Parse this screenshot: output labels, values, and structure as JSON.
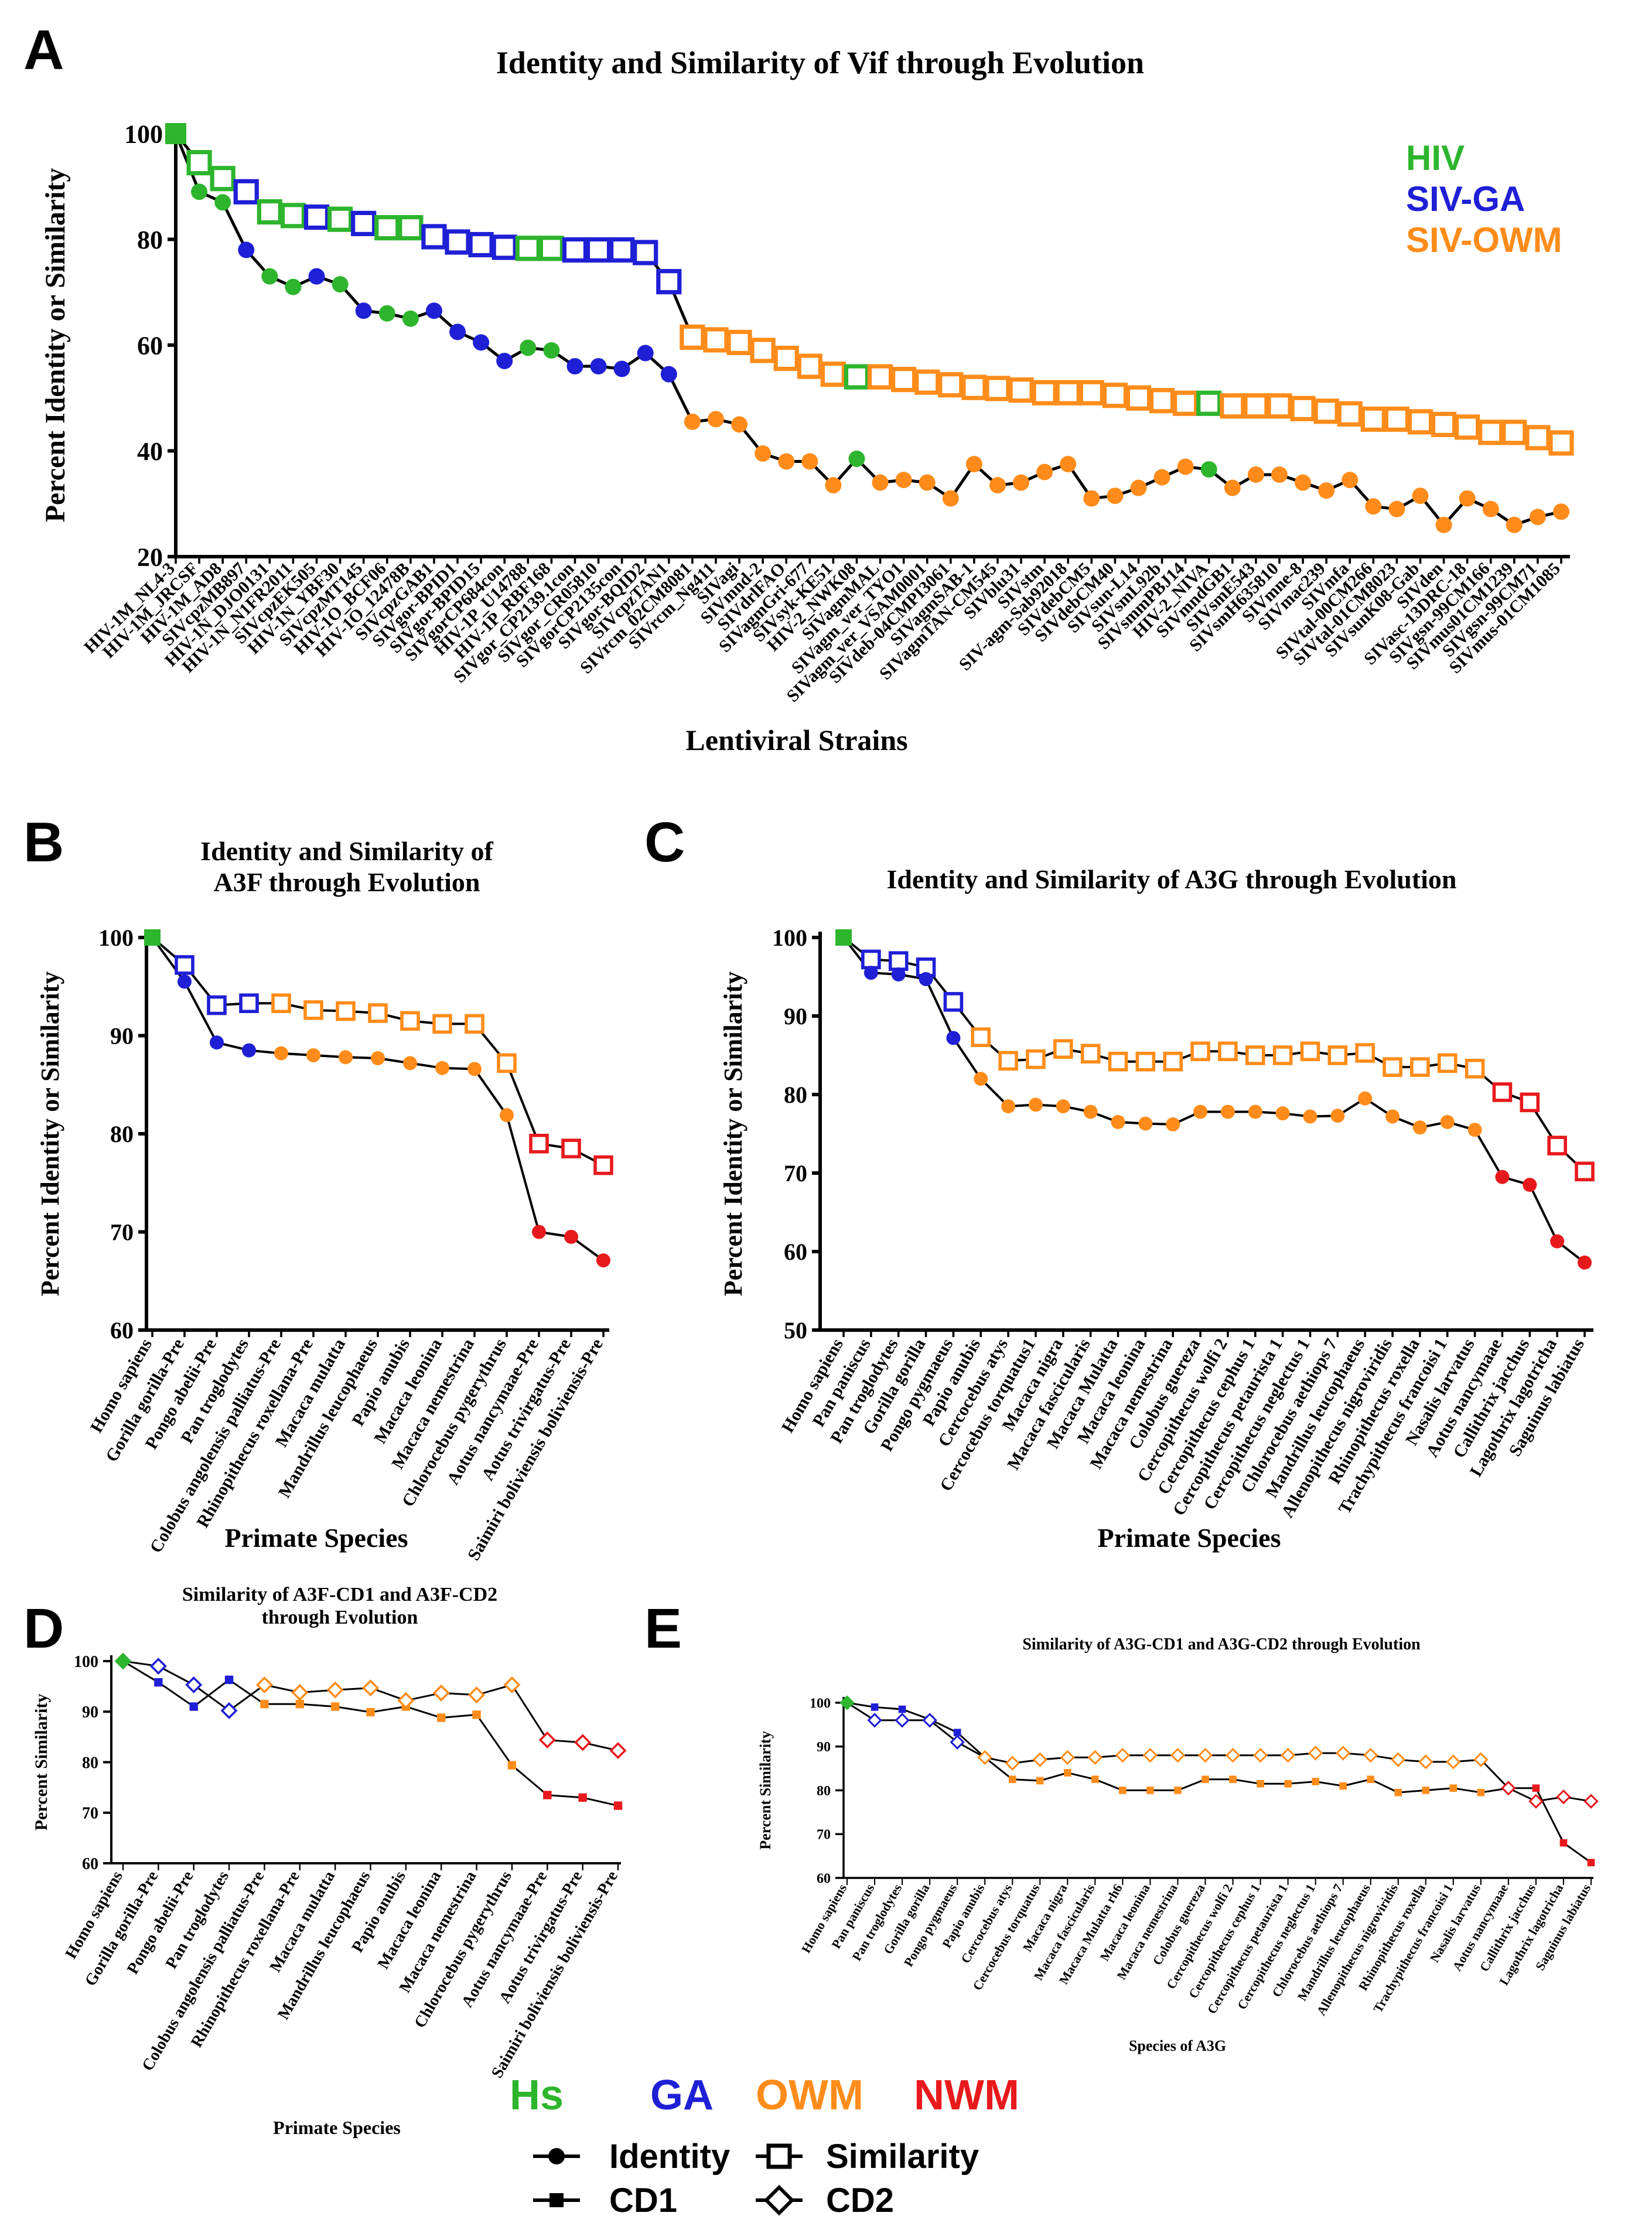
{
  "colors": {
    "Hs": "#2db52d",
    "GA": "#1f1fd6",
    "OWM": "#ff8c1a",
    "NWM": "#e8191d",
    "line": "#000000"
  },
  "legend": {
    "group_labels": [
      "Hs",
      "GA",
      "OWM",
      "NWM"
    ],
    "identity_label": "Identity",
    "similarity_label": "Similarity",
    "cd1_label": "CD1",
    "cd2_label": "CD2"
  },
  "chart_data": [
    {
      "panel": "A",
      "type": "line",
      "title": "Identity and Similarity of Vif through Evolution",
      "xlabel": "Lentiviral Strains",
      "ylabel": "Percent Identity or Similarity",
      "ylim": [
        20,
        100
      ],
      "yticks": [
        20,
        40,
        60,
        80,
        100
      ],
      "legend_entries": [
        "HIV",
        "SIV-GA",
        "SIV-OWM"
      ],
      "legend_colors": [
        "Hs",
        "GA",
        "OWM"
      ],
      "categories": [
        "HIV-1M_NL4-3",
        "HIV-1M_JRCSF",
        "HIV-1M_AD8",
        "SIVcpzMB897",
        "HIV-1N_DJO0131",
        "HIV-1N_N1FR2011",
        "SIVcpzEK505",
        "HIV-1N_YBF30",
        "SIVcpzMT145",
        "HIV-1O_BCF06",
        "HIV-1O_12478B",
        "SIVcpzGAB1",
        "SIVgor-BPID1",
        "SIVgor-BPID15",
        "SIVgorCP684con",
        "HIV-1P_U14788",
        "HIV-1P_RBF168",
        "SIVgor_CP2139.1con",
        "SIVgor_CR05810",
        "SIVgorCP2135con",
        "SIVgor-BQID2",
        "SIVcpzTAN1",
        "SIVrcm_02CM8081",
        "SIVrcm_Ng411",
        "SIVagi",
        "SIVmnd-2",
        "SIVdrlFAO",
        "SIVagmGri-677",
        "SIVsyk-KE51",
        "HIV-2_NWK08",
        "SIVagmMAL",
        "SIVagm_ver_TYO1",
        "SIVagm_ver_VSAM0001",
        "SIVdeb-04CMPI3061",
        "SIVagmSAB-1",
        "SIVagmTAN-CM545",
        "SIVblu31",
        "SIVstm",
        "SIV-agm-Sab92018",
        "SIVdebCM5",
        "SIVdebCM40",
        "SIVsun-L14",
        "SIVsmL92b",
        "SIVsmmPBJ14",
        "HIV-2_NIVA",
        "SIVmndGB1",
        "SIVsmE543",
        "SIVsmH635810",
        "SIVmne-8",
        "SIVmac239",
        "SIVmfa",
        "SIVtal-00CM266",
        "SIVtal-01CM8023",
        "SIVsunK08-Gab",
        "SIVden",
        "SIVasc-13DRC-18",
        "SIVgsn-99CM166",
        "SIVmus01CM1239",
        "SIVgsn-99CM71",
        "SIVmus-01CM1085"
      ],
      "similarity": [
        100,
        94.5,
        91.5,
        89,
        85.2,
        84.5,
        84.2,
        83.8,
        83,
        82.2,
        82.2,
        80.5,
        79.5,
        79,
        78.5,
        78.3,
        78.3,
        78,
        78,
        78,
        77.5,
        72,
        61.5,
        61,
        60.5,
        59,
        57.5,
        56,
        54.5,
        54,
        54,
        53.5,
        53,
        52.5,
        52,
        51.8,
        51.5,
        51,
        51,
        51,
        50.5,
        50,
        49.5,
        49,
        49,
        48.5,
        48.5,
        48.5,
        48,
        47.5,
        47,
        46,
        46,
        45.5,
        45,
        44.5,
        43.5,
        43.5,
        42.5,
        41.5
      ],
      "identity": [
        100,
        89,
        87,
        78,
        73,
        71,
        73,
        71.5,
        66.5,
        66,
        65,
        66.5,
        62.5,
        60.5,
        57,
        59.5,
        59,
        56,
        56,
        55.5,
        58.5,
        54.5,
        45.5,
        46,
        45,
        39.5,
        38,
        38,
        33.5,
        38.5,
        34,
        34.5,
        34,
        31,
        37.5,
        33.5,
        34,
        36,
        37.5,
        31,
        31.5,
        33,
        35,
        37,
        36.5,
        33,
        35.5,
        35.5,
        34,
        32.5,
        34.5,
        29.5,
        29,
        31.5,
        26,
        31,
        29,
        26,
        27.5,
        28.5
      ],
      "group": [
        "Hs",
        "Hs",
        "Hs",
        "GA",
        "Hs",
        "Hs",
        "GA",
        "Hs",
        "GA",
        "Hs",
        "Hs",
        "GA",
        "GA",
        "GA",
        "GA",
        "Hs",
        "Hs",
        "GA",
        "GA",
        "GA",
        "GA",
        "GA",
        "OWM",
        "OWM",
        "OWM",
        "OWM",
        "OWM",
        "OWM",
        "OWM",
        "Hs",
        "OWM",
        "OWM",
        "OWM",
        "OWM",
        "OWM",
        "OWM",
        "OWM",
        "OWM",
        "OWM",
        "OWM",
        "OWM",
        "OWM",
        "OWM",
        "OWM",
        "Hs",
        "OWM",
        "OWM",
        "OWM",
        "OWM",
        "OWM",
        "OWM",
        "OWM",
        "OWM",
        "OWM",
        "OWM",
        "OWM",
        "OWM",
        "OWM",
        "OWM",
        "OWM"
      ]
    },
    {
      "panel": "B",
      "type": "line",
      "title": [
        "Identity and Similarity of",
        "A3F through Evolution"
      ],
      "xlabel": "Primate Species",
      "ylabel": "Percent Identity or Similarity",
      "ylim": [
        60,
        100
      ],
      "yticks": [
        60,
        70,
        80,
        90,
        100
      ],
      "categories": [
        "Homo sapiens",
        "Gorilla gorilla-Pre",
        "Pongo abelii-Pre",
        "Pan troglodytes",
        "Colobus angolensis palliatus-Pre",
        "Rhinopithecus roxellana-Pre",
        "Macaca mulatta",
        "Mandrillus leucophaeus",
        "Papio anubis",
        "Macaca leonina",
        "Macaca nemestrina",
        "Chlorocebus pygerythrus",
        "Aotus nancymaae-Pre",
        "Aotus trivirgatus-Pre",
        "Saimiri boliviensis boliviensis-Pre"
      ],
      "similarity": [
        100,
        97.2,
        93.1,
        93.3,
        93.3,
        92.6,
        92.5,
        92.3,
        91.5,
        91.2,
        91.2,
        87.2,
        79,
        78.5,
        76.8
      ],
      "identity": [
        100,
        95.5,
        89.3,
        88.5,
        88.2,
        88,
        87.8,
        87.7,
        87.2,
        86.7,
        86.6,
        81.9,
        70,
        69.5,
        67.1
      ],
      "group": [
        "Hs",
        "GA",
        "GA",
        "GA",
        "OWM",
        "OWM",
        "OWM",
        "OWM",
        "OWM",
        "OWM",
        "OWM",
        "OWM",
        "NWM",
        "NWM",
        "NWM"
      ]
    },
    {
      "panel": "C",
      "type": "line",
      "title": "Identity and Similarity of A3G through Evolution",
      "xlabel": "Primate Species",
      "ylabel": "Percent Identity or Similarity",
      "ylim": [
        50,
        100
      ],
      "yticks": [
        50,
        60,
        70,
        80,
        90,
        100
      ],
      "categories": [
        "Homo sapiens",
        "Pan paniscus",
        "Pan troglodytes",
        "Gorilla gorilla",
        "Pongo pygmaeus",
        "Papio anubis",
        "Cercocebus atys",
        "Cercocebus torquatus1",
        "Macaca nigra",
        "Macaca fascicularis",
        "Macaca Mulatta",
        "Macaca leonina",
        "Macaca nemestrina",
        "Colobus guereza",
        "Cercopithecus wolfi 2",
        "Cercopithecus cephus 1",
        "Cercopithecus petaurista 1",
        "Cercopithecus neglectus 1",
        "Chlorocebus aethiops 7",
        "Mandrillus leucophaeus",
        "Allenopithecus nigroviridis",
        "Rhinopithecus roxella",
        "Trachypithecus francoisi 1",
        "Nasalis larvatus",
        "Aotus nancymaae",
        "Callithrix jacchus",
        "Lagothrix lagotricha",
        "Saguinus labiatus"
      ],
      "similarity": [
        100,
        97.2,
        97,
        96.2,
        91.8,
        87.3,
        84.3,
        84.5,
        85.8,
        85.2,
        84.2,
        84.2,
        84.2,
        85.5,
        85.5,
        85,
        85,
        85.5,
        85,
        85.3,
        83.5,
        83.5,
        84,
        83.3,
        80.3,
        79,
        73.5,
        70.2
      ],
      "identity": [
        100,
        95.5,
        95.3,
        94.7,
        87.2,
        82,
        78.5,
        78.7,
        78.5,
        77.8,
        76.5,
        76.3,
        76.2,
        77.8,
        77.8,
        77.8,
        77.6,
        77.2,
        77.3,
        79.5,
        77.2,
        75.8,
        76.5,
        75.5,
        69.5,
        68.5,
        61.3,
        58.6
      ],
      "group": [
        "Hs",
        "GA",
        "GA",
        "GA",
        "GA",
        "OWM",
        "OWM",
        "OWM",
        "OWM",
        "OWM",
        "OWM",
        "OWM",
        "OWM",
        "OWM",
        "OWM",
        "OWM",
        "OWM",
        "OWM",
        "OWM",
        "OWM",
        "OWM",
        "OWM",
        "OWM",
        "OWM",
        "NWM",
        "NWM",
        "NWM",
        "NWM"
      ]
    },
    {
      "panel": "D",
      "type": "line",
      "title": [
        "Similarity of A3F-CD1 and A3F-CD2",
        "through Evolution"
      ],
      "xlabel": "Primate Species",
      "ylabel": "Percent Similarity",
      "ylim": [
        60,
        100
      ],
      "yticks": [
        60,
        70,
        80,
        90,
        100
      ],
      "categories": [
        "Homo sapiens",
        "Gorilla gorilla-Pre",
        "Pongo abelii-Pre",
        "Pan troglodytes",
        "Colobus angolensis palliatus-Pre",
        "Rhinopithecus roxellana-Pre",
        "Macaca mulatta",
        "Mandrillus leucophaeus",
        "Papio anubis",
        "Macaca leonina",
        "Macaca nemestrina",
        "Chlorocebus pygerythrus",
        "Aotus nancymaae-Pre",
        "Aotus trivirgatus-Pre",
        "Saimiri boliviensis boliviensis-Pre"
      ],
      "cd1": [
        100,
        95.8,
        91,
        96.3,
        91.5,
        91.5,
        91,
        89.9,
        91,
        88.8,
        89.4,
        79.4,
        73.5,
        73,
        71.4
      ],
      "cd2": [
        100,
        99,
        95.3,
        90.2,
        95.3,
        93.8,
        94.3,
        94.7,
        92.2,
        93.7,
        93.3,
        95.3,
        84.4,
        83.9,
        82.3
      ],
      "group": [
        "Hs",
        "GA",
        "GA",
        "GA",
        "OWM",
        "OWM",
        "OWM",
        "OWM",
        "OWM",
        "OWM",
        "OWM",
        "OWM",
        "NWM",
        "NWM",
        "NWM"
      ]
    },
    {
      "panel": "E",
      "type": "line",
      "title": "Similarity of A3G-CD1 and A3G-CD2 through Evolution",
      "xlabel": "Species of A3G",
      "ylabel": "Percent Similarity",
      "ylim": [
        60,
        100
      ],
      "yticks": [
        60,
        70,
        80,
        90,
        100
      ],
      "categories": [
        "Homo sapiens",
        "Pan paniscus",
        "Pan troglodytes",
        "Gorilla gorilla",
        "Pongo pygmaeus",
        "Papio anubis",
        "Cercocebus atys",
        "Cercocebus torquatus",
        "Macaca nigra",
        "Macaca fascicularis",
        "Macaca Mulatta rh6",
        "Macaca leonina",
        "Macaca nemestrina",
        "Colobus guereza",
        "Cercopithecus wolfi 2",
        "Cercopithecus cephus 1",
        "Cercopithecus petaurista 1",
        "Cercopithecus neglectus 1",
        "Chlorocebus aethiops 7",
        "Mandrillus leucophaeus",
        "Allenopithecus nigroviridis",
        "Rhinopithecus roxella",
        "Trachypithecus francoisi 1",
        "Nasalis larvatus",
        "Aotus nancymaae",
        "Callithrix jacchus",
        "Lagothrix lagotricha",
        "Saguinus labiatus"
      ],
      "cd1": [
        100,
        99,
        98.5,
        96.2,
        93.2,
        87.5,
        82.5,
        82.2,
        84,
        82.5,
        80,
        80,
        80,
        82.5,
        82.5,
        81.5,
        81.5,
        82,
        81,
        82.5,
        79.5,
        80,
        80.5,
        79.5,
        80.5,
        80.5,
        68,
        63.5
      ],
      "cd2": [
        100,
        96,
        96,
        96,
        91,
        87.5,
        86.2,
        87,
        87.5,
        87.5,
        88,
        88,
        88,
        88,
        88,
        88,
        88,
        88.5,
        88.5,
        88,
        87,
        86.5,
        86.5,
        87,
        80.5,
        77.5,
        78.5,
        77.5
      ],
      "group": [
        "Hs",
        "GA",
        "GA",
        "GA",
        "GA",
        "OWM",
        "OWM",
        "OWM",
        "OWM",
        "OWM",
        "OWM",
        "OWM",
        "OWM",
        "OWM",
        "OWM",
        "OWM",
        "OWM",
        "OWM",
        "OWM",
        "OWM",
        "OWM",
        "OWM",
        "OWM",
        "OWM",
        "NWM",
        "NWM",
        "NWM",
        "NWM"
      ]
    }
  ]
}
